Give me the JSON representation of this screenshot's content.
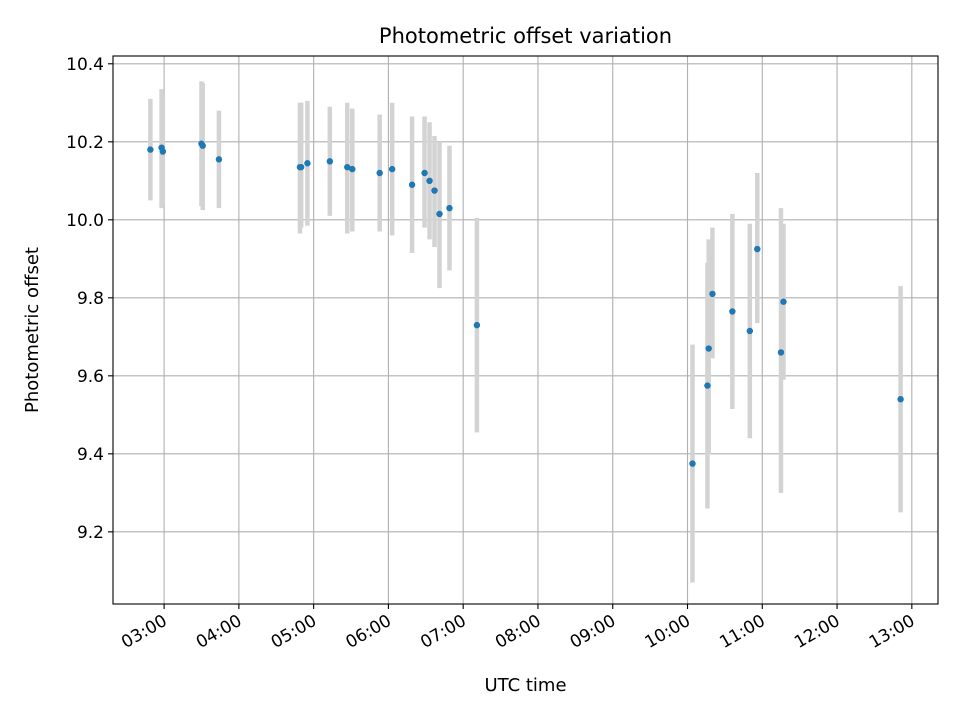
{
  "chart_data": {
    "type": "scatter",
    "title": "Photometric offset variation",
    "xlabel": "UTC time",
    "ylabel": "Photometric offset",
    "x_ticks": [
      "03:00",
      "04:00",
      "05:00",
      "06:00",
      "07:00",
      "08:00",
      "09:00",
      "10:00",
      "11:00",
      "12:00",
      "13:00"
    ],
    "x_tick_hours": [
      3,
      4,
      5,
      6,
      7,
      8,
      9,
      10,
      11,
      12,
      13
    ],
    "xlim": [
      "02:19",
      "13:21"
    ],
    "y_ticks": [
      "9.2",
      "9.4",
      "9.6",
      "9.8",
      "10.0",
      "10.2",
      "10.4"
    ],
    "y_tick_values": [
      9.2,
      9.4,
      9.6,
      9.8,
      10.0,
      10.2,
      10.4
    ],
    "ylim": [
      9.015,
      10.42
    ],
    "grid": true,
    "marker_color": "#1f77b4",
    "errorbar_color": "#d3d3d3",
    "series": [
      {
        "points": [
          {
            "t": "02:49",
            "y": 10.18,
            "lo": 10.05,
            "hi": 10.31
          },
          {
            "t": "02:58",
            "y": 10.185,
            "lo": 10.03,
            "hi": 10.335
          },
          {
            "t": "02:59",
            "y": 10.175,
            "lo": 10.04,
            "hi": 10.32
          },
          {
            "t": "03:30",
            "y": 10.195,
            "lo": 10.035,
            "hi": 10.355
          },
          {
            "t": "03:31",
            "y": 10.19,
            "lo": 10.025,
            "hi": 10.35
          },
          {
            "t": "03:44",
            "y": 10.155,
            "lo": 10.03,
            "hi": 10.28
          },
          {
            "t": "04:49",
            "y": 10.135,
            "lo": 9.965,
            "hi": 10.3
          },
          {
            "t": "04:50",
            "y": 10.135,
            "lo": 9.98,
            "hi": 10.3
          },
          {
            "t": "04:55",
            "y": 10.145,
            "lo": 9.985,
            "hi": 10.305
          },
          {
            "t": "05:13",
            "y": 10.15,
            "lo": 10.01,
            "hi": 10.29
          },
          {
            "t": "05:27",
            "y": 10.135,
            "lo": 9.965,
            "hi": 10.3
          },
          {
            "t": "05:31",
            "y": 10.13,
            "lo": 9.97,
            "hi": 10.285
          },
          {
            "t": "05:53",
            "y": 10.12,
            "lo": 9.97,
            "hi": 10.27
          },
          {
            "t": "06:03",
            "y": 10.13,
            "lo": 9.96,
            "hi": 10.3
          },
          {
            "t": "06:19",
            "y": 10.09,
            "lo": 9.915,
            "hi": 10.265
          },
          {
            "t": "06:29",
            "y": 10.12,
            "lo": 9.98,
            "hi": 10.265
          },
          {
            "t": "06:33",
            "y": 10.1,
            "lo": 9.95,
            "hi": 10.25
          },
          {
            "t": "06:37",
            "y": 10.075,
            "lo": 9.93,
            "hi": 10.215
          },
          {
            "t": "06:41",
            "y": 10.015,
            "lo": 9.825,
            "hi": 10.2
          },
          {
            "t": "06:49",
            "y": 10.03,
            "lo": 9.87,
            "hi": 10.19
          },
          {
            "t": "07:11",
            "y": 9.73,
            "lo": 9.455,
            "hi": 10.005
          },
          {
            "t": "10:04",
            "y": 9.375,
            "lo": 9.07,
            "hi": 9.68
          },
          {
            "t": "10:16",
            "y": 9.575,
            "lo": 9.26,
            "hi": 9.89
          },
          {
            "t": "10:17",
            "y": 9.67,
            "lo": 9.4,
            "hi": 9.95
          },
          {
            "t": "10:20",
            "y": 9.81,
            "lo": 9.645,
            "hi": 9.98
          },
          {
            "t": "10:36",
            "y": 9.765,
            "lo": 9.515,
            "hi": 10.015
          },
          {
            "t": "10:50",
            "y": 9.715,
            "lo": 9.44,
            "hi": 9.99
          },
          {
            "t": "10:56",
            "y": 9.925,
            "lo": 9.735,
            "hi": 10.12
          },
          {
            "t": "11:15",
            "y": 9.66,
            "lo": 9.3,
            "hi": 10.03
          },
          {
            "t": "11:17",
            "y": 9.79,
            "lo": 9.59,
            "hi": 9.99
          },
          {
            "t": "12:51",
            "y": 9.54,
            "lo": 9.25,
            "hi": 9.83
          }
        ]
      }
    ]
  }
}
